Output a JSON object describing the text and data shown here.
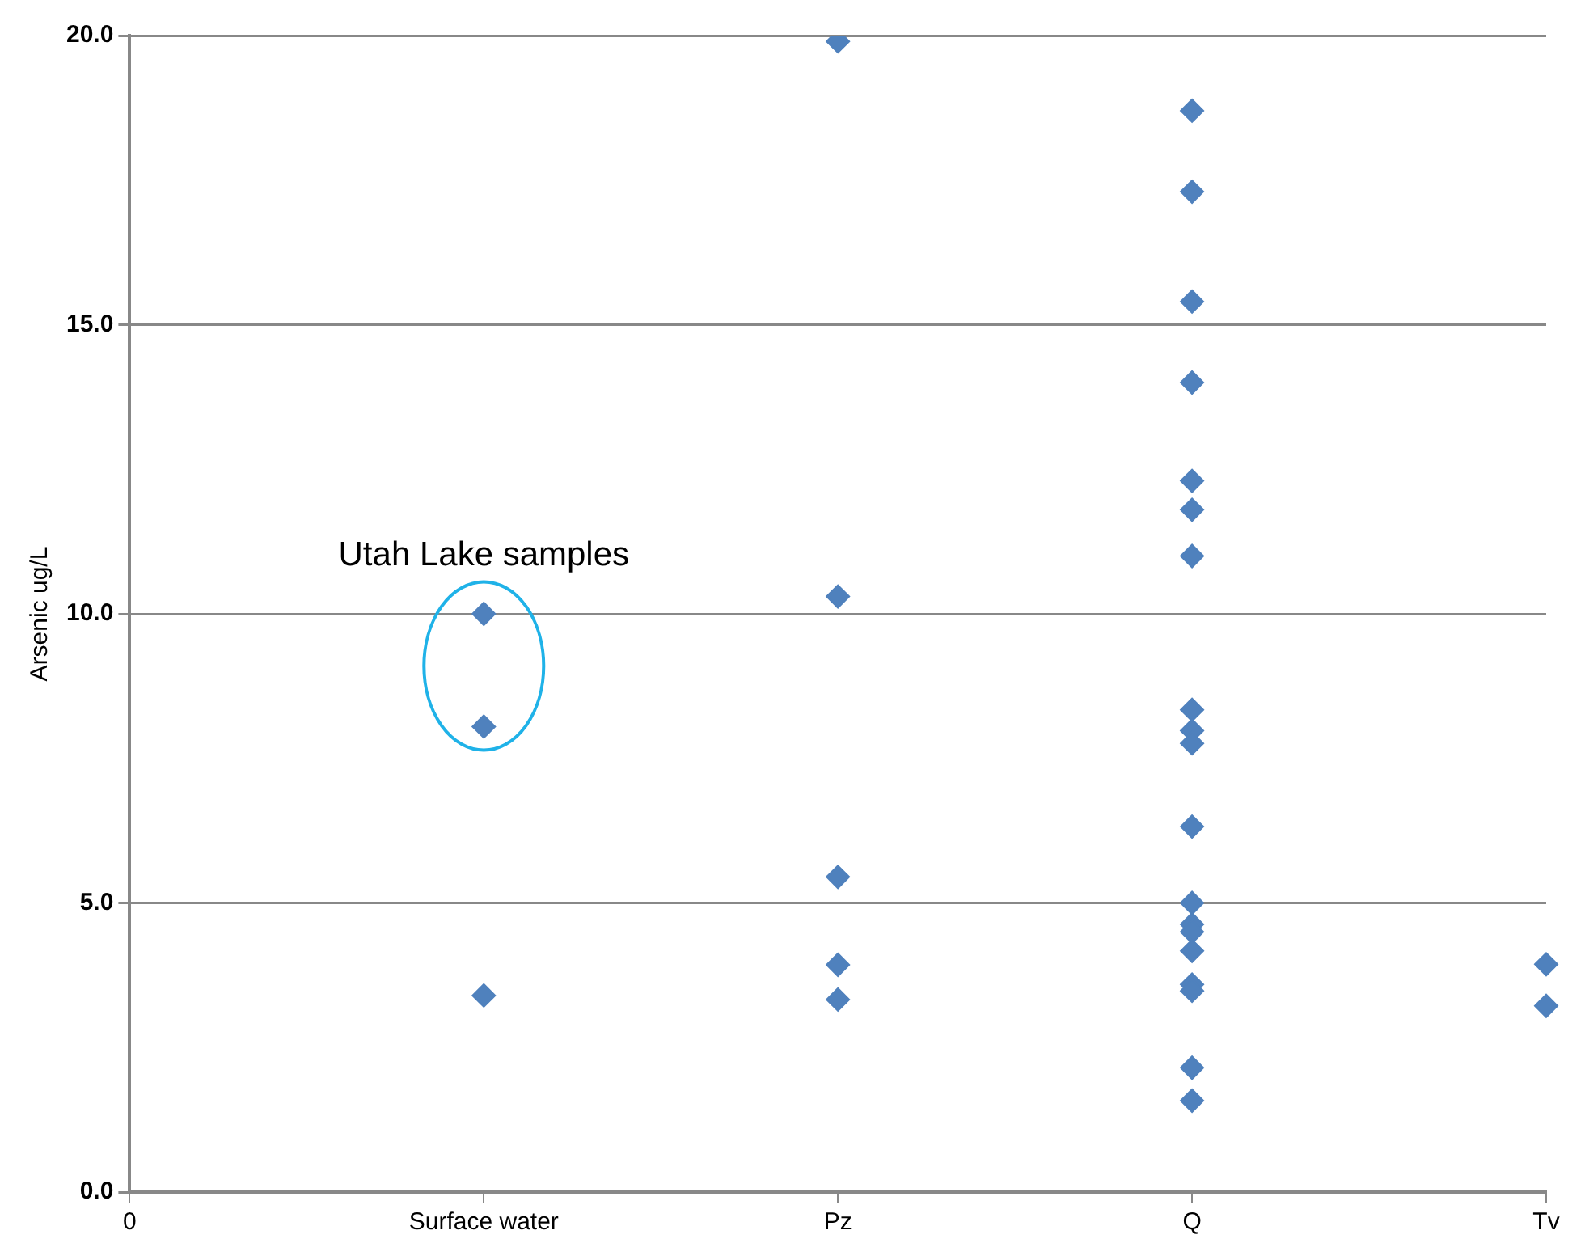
{
  "chart_data": {
    "type": "scatter",
    "ylabel": "Arsenic ug/L",
    "categories": [
      "0",
      "Surface water",
      "Pz",
      "Q",
      "Tv"
    ],
    "series": [
      {
        "color": "#4f81bd",
        "x": [
          "Surface water",
          "Surface water",
          "Surface water",
          "Pz",
          "Pz",
          "Pz",
          "Pz",
          "Pz",
          "Q",
          "Q",
          "Q",
          "Q",
          "Q",
          "Q",
          "Q",
          "Q",
          "Q",
          "Q",
          "Q",
          "Q",
          "Q",
          "Q",
          "Q",
          "Q",
          "Q",
          "Q",
          "Q",
          "Tv",
          "Tv"
        ],
        "values": [
          10.0,
          8.05,
          3.4,
          19.9,
          10.3,
          5.45,
          3.93,
          3.33,
          18.7,
          17.3,
          15.4,
          14.0,
          12.3,
          11.8,
          11.0,
          8.34,
          7.98,
          7.76,
          6.32,
          5.0,
          4.63,
          4.5,
          4.17,
          3.59,
          3.48,
          2.15,
          1.58,
          3.94,
          3.22
        ]
      }
    ],
    "marker": "diamond",
    "ylim": [
      0,
      20
    ],
    "yticks": [
      {
        "value": 0,
        "label": "0.0"
      },
      {
        "value": 5,
        "label": "5.0"
      },
      {
        "value": 10,
        "label": "10.0"
      },
      {
        "value": 15,
        "label": "15.0"
      },
      {
        "value": 20,
        "label": "20.0"
      }
    ],
    "grid": "y",
    "legend": false,
    "annotations": [
      "Utah Lake samples"
    ]
  }
}
